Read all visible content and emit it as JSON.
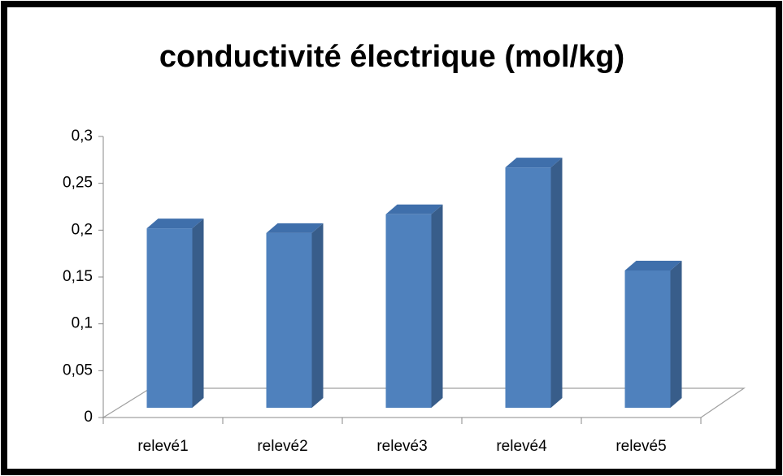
{
  "chart_data": {
    "type": "bar",
    "title": "conductivité électrique (mol/kg)",
    "categories": [
      "relevé1",
      "relevé2",
      "relevé3",
      "relevé4",
      "relevé5"
    ],
    "values": [
      0.195,
      0.19,
      0.21,
      0.26,
      0.15
    ],
    "color": "#4f81bd",
    "ylim": [
      0,
      0.3
    ],
    "yticks": [
      0,
      {
        "value": 0.05,
        "label": "0,05"
      },
      {
        "value": 0.1,
        "label": "0,1"
      },
      {
        "value": 0.15,
        "label": "0,15"
      },
      {
        "value": 0.2,
        "label": "0,2"
      },
      {
        "value": 0.25,
        "label": "0,25"
      },
      {
        "value": 0.3,
        "label": "0,3"
      }
    ]
  }
}
